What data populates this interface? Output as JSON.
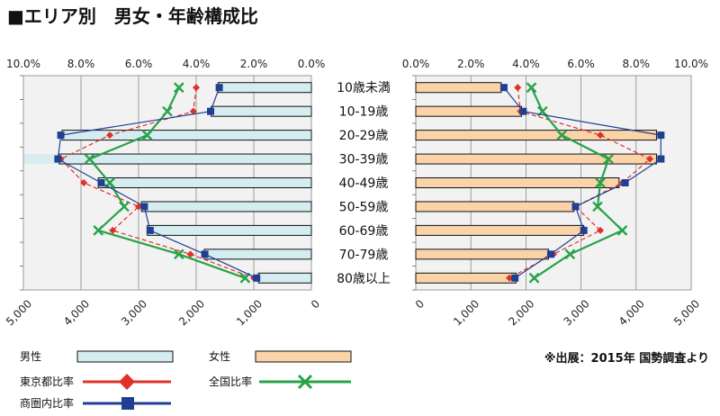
{
  "title": "■エリア別　男女・年齢構成比",
  "source": "※出展：2015年 国勢調査より",
  "age_groups": [
    "10歳未満",
    "10-19歳",
    "20-29歳",
    "30-39歳",
    "40-49歳",
    "50-59歳",
    "60-69歳",
    "70-79歳",
    "80歳以上"
  ],
  "colors": {
    "male_fill": "#d5ecf1",
    "female_fill": "#fbd3a8",
    "tokyo": "#e03128",
    "national": "#27a348",
    "trade_area": "#1f3f93",
    "grid": "#888888",
    "plot_bg": "#f2f2f2",
    "highlight_row": "#d5ecf1"
  },
  "legend": {
    "male_label": "男性",
    "female_label": "女性",
    "tokyo_label": "東京都比率",
    "national_label": "全国比率",
    "trade_label": "商圏内比率"
  },
  "chart_data": [
    {
      "type": "bar",
      "side": "male",
      "orientation": "horizontal-reversed",
      "categories": [
        "10歳未満",
        "10-19歳",
        "20-29歳",
        "30-39歳",
        "40-49歳",
        "50-59歳",
        "60-69歳",
        "70-79歳",
        "80歳以上"
      ],
      "bottom_axis": {
        "ticks": [
          "5,000",
          "4,000",
          "3,000",
          "2,000",
          "1,000",
          "0"
        ],
        "range": [
          5000,
          0
        ]
      },
      "top_axis": {
        "ticks": [
          "10.0%",
          "8.0%",
          "6.0%",
          "4.0%",
          "2.0%",
          "0.0%"
        ],
        "range": [
          10,
          0
        ]
      },
      "series": [
        {
          "name": "男性",
          "kind": "bar",
          "values": [
            1620,
            1740,
            4330,
            4380,
            3700,
            2950,
            2850,
            1860,
            920
          ]
        },
        {
          "name": "東京都比率",
          "kind": "line",
          "marker": "diamond",
          "values": [
            4.0,
            4.1,
            7.0,
            8.7,
            7.9,
            6.0,
            6.9,
            4.2,
            2.0
          ]
        },
        {
          "name": "全国比率",
          "kind": "line",
          "marker": "x",
          "values": [
            4.6,
            5.0,
            5.7,
            7.7,
            7.0,
            6.5,
            7.4,
            4.6,
            2.3
          ]
        },
        {
          "name": "商圏内比率",
          "kind": "line",
          "marker": "square",
          "values": [
            3.2,
            3.5,
            8.7,
            8.8,
            7.3,
            5.8,
            5.6,
            3.7,
            1.9
          ]
        }
      ]
    },
    {
      "type": "bar",
      "side": "female",
      "orientation": "horizontal",
      "categories": [
        "10歳未満",
        "10-19歳",
        "20-29歳",
        "30-39歳",
        "40-49歳",
        "50-59歳",
        "60-69歳",
        "70-79歳",
        "80歳以上"
      ],
      "bottom_axis": {
        "ticks": [
          "0",
          "1,000",
          "2,000",
          "3,000",
          "4,000",
          "5,000"
        ],
        "range": [
          0,
          5000
        ]
      },
      "top_axis": {
        "ticks": [
          "0.0%",
          "2.0%",
          "4.0%",
          "6.0%",
          "8.0%",
          "10.0%"
        ],
        "range": [
          0,
          10
        ]
      },
      "series": [
        {
          "name": "女性",
          "kind": "bar",
          "values": [
            1550,
            1920,
            4370,
            4370,
            3690,
            2870,
            3050,
            2410,
            1820
          ]
        },
        {
          "name": "東京都比率",
          "kind": "line",
          "marker": "diamond",
          "values": [
            3.7,
            3.8,
            6.7,
            8.5,
            7.5,
            5.8,
            6.7,
            5.0,
            3.4
          ]
        },
        {
          "name": "全国比率",
          "kind": "line",
          "marker": "x",
          "values": [
            4.2,
            4.6,
            5.3,
            7.0,
            6.7,
            6.6,
            7.5,
            5.6,
            4.3
          ]
        },
        {
          "name": "商圏内比率",
          "kind": "line",
          "marker": "square",
          "values": [
            3.2,
            3.9,
            8.9,
            8.9,
            7.6,
            5.8,
            6.1,
            4.9,
            3.6
          ]
        }
      ]
    }
  ]
}
